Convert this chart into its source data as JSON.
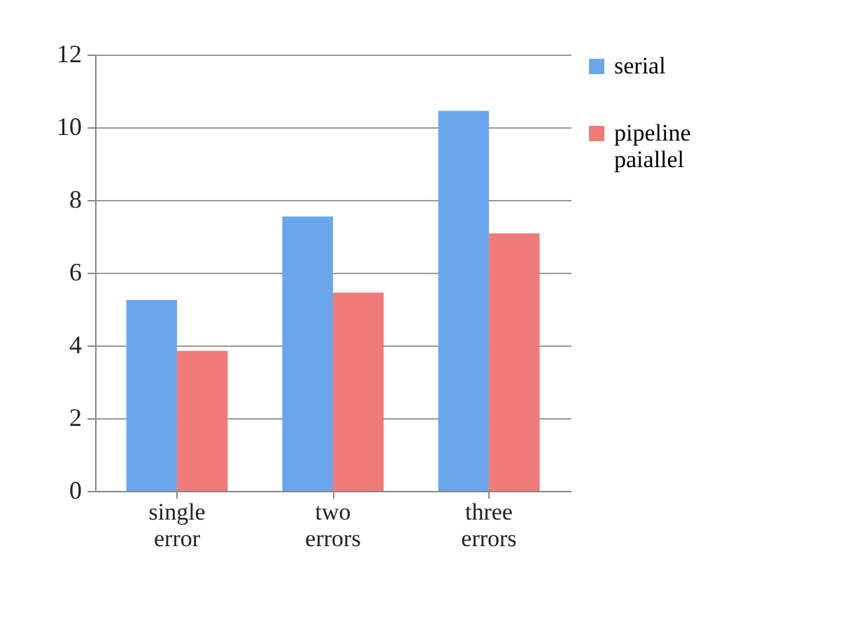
{
  "chart_data": {
    "type": "bar",
    "categories": [
      "single error",
      "two errors",
      "three errors"
    ],
    "series": [
      {
        "name": "serial",
        "color": "#6aa6ec",
        "values": [
          5.25,
          7.55,
          10.45
        ]
      },
      {
        "name": "pipeline paiallel",
        "color": "#ef7b78",
        "values": [
          3.85,
          5.45,
          7.08
        ]
      }
    ],
    "ylim": [
      0,
      12
    ],
    "yticks": [
      0,
      2,
      4,
      6,
      8,
      10,
      12
    ],
    "grid": "y",
    "legend": "right"
  }
}
